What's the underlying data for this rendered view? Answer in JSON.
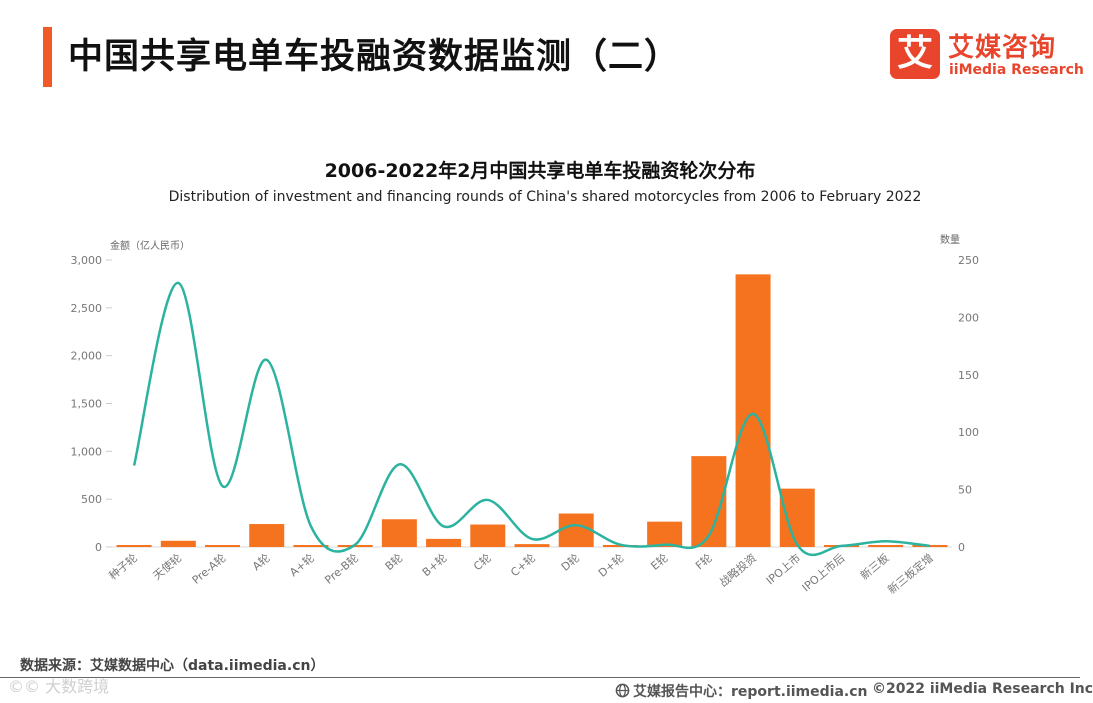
{
  "header": {
    "title": "中国共享电单车投融资数据监测（二）",
    "brand_mark": "艾",
    "brand_cn": "艾媒咨询",
    "brand_en": "iiMedia Research"
  },
  "colors": {
    "accent": "#f05a28",
    "bar": "#f5731e",
    "line": "#2bb3a0",
    "brand": "#e8452c"
  },
  "chart_data": {
    "type": "bar",
    "title": "2006-2022年2月中国共享电单车投融资轮次分布",
    "subtitle": "Distribution of investment and financing rounds of China's shared motorcycles from 2006 to February 2022",
    "categories": [
      "种子轮",
      "天使轮",
      "Pre-A轮",
      "A轮",
      "A+轮",
      "Pre-B轮",
      "B轮",
      "B+轮",
      "C轮",
      "C+轮",
      "D轮",
      "D+轮",
      "E轮",
      "F轮",
      "战略投资",
      "IPO上市",
      "IPO上市后",
      "新三板",
      "新三板定增"
    ],
    "y_left": {
      "label": "金额（亿人民币）",
      "ticks": [
        "0",
        "500",
        "1,000",
        "1,500",
        "2,000",
        "2,500",
        "3,000"
      ],
      "ylim": [
        0,
        3000
      ]
    },
    "y_right": {
      "label": "数量",
      "ticks": [
        "0",
        "50",
        "100",
        "150",
        "200",
        "250"
      ],
      "ylim": [
        0,
        250
      ]
    },
    "series": [
      {
        "type": "bar",
        "axis": "left",
        "values": [
          20,
          65,
          20,
          240,
          15,
          15,
          290,
          85,
          235,
          30,
          350,
          15,
          265,
          950,
          2850,
          610,
          10,
          10,
          10
        ]
      },
      {
        "type": "line",
        "axis": "right",
        "values": [
          71,
          230,
          53,
          163,
          18,
          2,
          72,
          18,
          41,
          7,
          19,
          2,
          2,
          10,
          116,
          2,
          1,
          5,
          1
        ]
      }
    ],
    "grid": false
  },
  "footer": {
    "source": "数据来源：艾媒数据中心（data.iimedia.cn）",
    "watermark": "©© 大数跨境",
    "report_site": "艾媒报告中心：report.iimedia.cn",
    "copyright": "©2022  iiMedia Research  Inc"
  }
}
